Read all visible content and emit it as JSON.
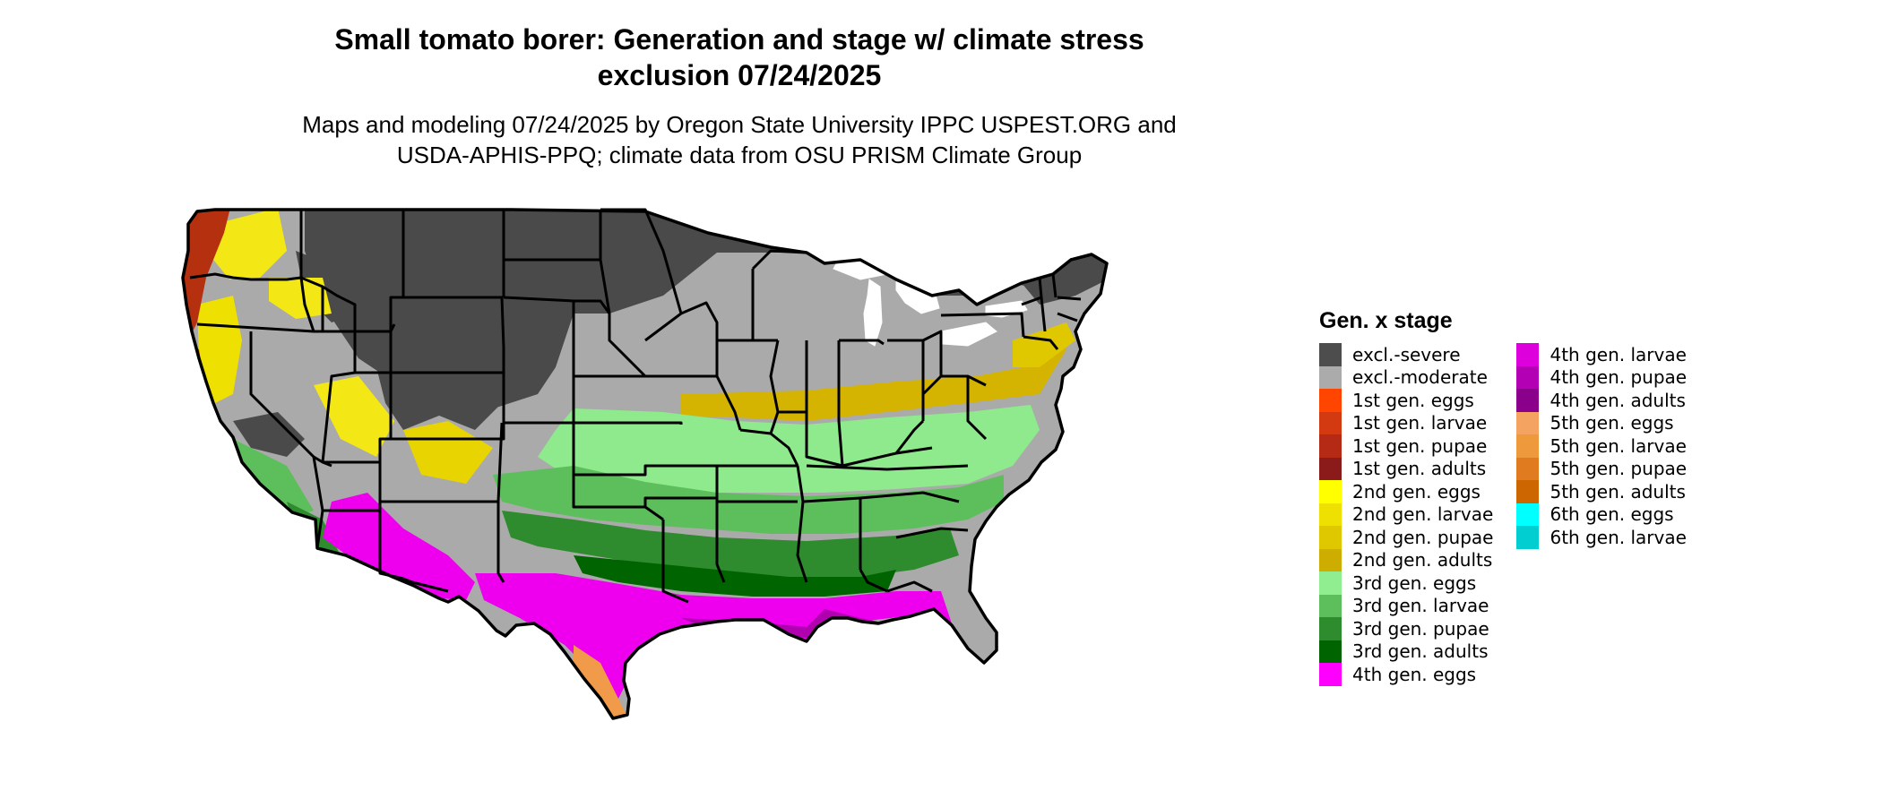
{
  "title": {
    "line1": "Small tomato borer: Generation and stage w/ climate stress",
    "line2": "exclusion 07/24/2025"
  },
  "subtitle": {
    "line1": "Maps and modeling 07/24/2025 by Oregon State University IPPC USPEST.ORG and",
    "line2": "USDA-APHIS-PPQ; climate data from OSU PRISM Climate Group"
  },
  "map": {
    "region": "Contiguous United States",
    "colors": {
      "excl_severe": "#4a4a4a",
      "excl_moderate": "#aaaaaa",
      "gen1": "#b5300f",
      "gen2_light": "#f3e816",
      "gen2_dark": "#d4b400",
      "gen3_light": "#8eea8c",
      "gen3_mid": "#5cbf5c",
      "gen3_dark": "#2e8b2e",
      "gen4": "#ee00ee",
      "gen4_dark": "#b000b0",
      "gen5": "#f09a4a",
      "state_border": "#000000"
    }
  },
  "legend": {
    "title": "Gen. x stage",
    "items": [
      {
        "label": "excl.-severe",
        "color": "#4d4d4d"
      },
      {
        "label": "excl.-moderate",
        "color": "#ababab"
      },
      {
        "label": "1st gen. eggs",
        "color": "#ff4500"
      },
      {
        "label": "1st gen. larvae",
        "color": "#d43a12"
      },
      {
        "label": "1st gen. pupae",
        "color": "#b52a14"
      },
      {
        "label": "1st gen. adults",
        "color": "#8b1a1a"
      },
      {
        "label": "2nd gen. eggs",
        "color": "#ffff00"
      },
      {
        "label": "2nd gen. larvae",
        "color": "#eee000"
      },
      {
        "label": "2nd gen. pupae",
        "color": "#e0c800"
      },
      {
        "label": "2nd gen. adults",
        "color": "#cdad00"
      },
      {
        "label": "3rd gen. eggs",
        "color": "#90ee90"
      },
      {
        "label": "3rd gen. larvae",
        "color": "#5cbf5c"
      },
      {
        "label": "3rd gen. pupae",
        "color": "#2e8b2e"
      },
      {
        "label": "3rd gen. adults",
        "color": "#006400"
      },
      {
        "label": "4th gen. eggs",
        "color": "#ff00ff"
      },
      {
        "label": "4th gen. larvae",
        "color": "#dd00dd"
      },
      {
        "label": "4th gen. pupae",
        "color": "#b400b4"
      },
      {
        "label": "4th gen. adults",
        "color": "#8b008b"
      },
      {
        "label": "5th gen. eggs",
        "color": "#f4a460"
      },
      {
        "label": "5th gen. larvae",
        "color": "#ee9a3c"
      },
      {
        "label": "5th gen. pupae",
        "color": "#e07b20"
      },
      {
        "label": "5th gen. adults",
        "color": "#cd6600"
      },
      {
        "label": "6th gen. eggs",
        "color": "#00ffff"
      },
      {
        "label": "6th gen. larvae",
        "color": "#00ced1"
      }
    ]
  }
}
